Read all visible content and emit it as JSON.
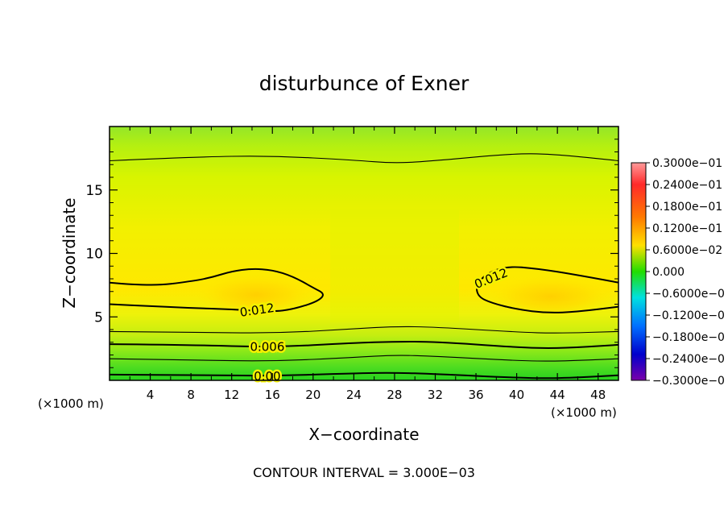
{
  "chart_data": {
    "type": "heatmap",
    "title": "disturbunce of Exner",
    "xlabel": "X−coordinate",
    "ylabel": "Z−coordinate",
    "x_unit_left": "(×1000 m)",
    "x_unit_right": "(×1000 m)",
    "xlim": [
      0,
      50
    ],
    "ylim": [
      0,
      20
    ],
    "x_ticks": [
      4,
      8,
      12,
      16,
      20,
      24,
      28,
      32,
      36,
      40,
      44,
      48
    ],
    "x_tick_labels": [
      "4",
      "8",
      "12",
      "16",
      "20",
      "24",
      "28",
      "32",
      "36",
      "40",
      "44",
      "48"
    ],
    "y_ticks": [
      5,
      10,
      15
    ],
    "y_tick_labels": [
      "5",
      "10",
      "15"
    ],
    "footer": "CONTOUR INTERVAL = 3.000E−03",
    "colorbar": {
      "range": [
        -0.03,
        0.03
      ],
      "labels": [
        "0.3000e−01",
        "0.2400e−01",
        "0.1800e−01",
        "0.1200e−01",
        "0.6000e−02",
        "0.000",
        "−0.6000e−0",
        "−0.1200e−0",
        "−0.1800e−0",
        "−0.2400e−0",
        "−0.3000e−0"
      ]
    },
    "contour_levels": [
      0.0,
      0.003,
      0.006,
      0.009,
      0.012
    ],
    "contour_labels": [
      {
        "text": "0.012",
        "x": 14.5,
        "z": 5.5
      },
      {
        "text": "0.012",
        "x": 37.5,
        "z": 8.0
      },
      {
        "text": "0.006",
        "x": 15.5,
        "z": 2.6
      },
      {
        "text": "0.00",
        "x": 15.5,
        "z": 0.3
      }
    ],
    "contours": [
      {
        "level": 0.0,
        "points": [
          [
            0,
            0.45
          ],
          [
            8,
            0.42
          ],
          [
            16,
            0.35
          ],
          [
            24,
            0.55
          ],
          [
            28,
            0.6
          ],
          [
            32,
            0.5
          ],
          [
            40,
            0.2
          ],
          [
            44,
            0.15
          ],
          [
            50,
            0.4
          ]
        ]
      },
      {
        "level": 0.003,
        "points": [
          [
            0,
            1.7
          ],
          [
            8,
            1.6
          ],
          [
            16,
            1.5
          ],
          [
            24,
            1.8
          ],
          [
            28,
            2.0
          ],
          [
            32,
            1.9
          ],
          [
            40,
            1.55
          ],
          [
            44,
            1.5
          ],
          [
            50,
            1.7
          ]
        ]
      },
      {
        "level": 0.006,
        "points": [
          [
            0,
            2.85
          ],
          [
            8,
            2.8
          ],
          [
            16,
            2.6
          ],
          [
            24,
            2.95
          ],
          [
            28,
            3.05
          ],
          [
            32,
            3.05
          ],
          [
            40,
            2.6
          ],
          [
            44,
            2.5
          ],
          [
            50,
            2.8
          ]
        ]
      },
      {
        "level": 0.009,
        "points": [
          [
            0,
            3.85
          ],
          [
            8,
            3.8
          ],
          [
            16,
            3.7
          ],
          [
            24,
            4.05
          ],
          [
            28,
            4.25
          ],
          [
            32,
            4.2
          ],
          [
            40,
            3.8
          ],
          [
            44,
            3.7
          ],
          [
            50,
            3.85
          ]
        ]
      },
      {
        "level": 0.009,
        "points": [
          [
            0,
            17.3
          ],
          [
            8,
            17.6
          ],
          [
            16,
            17.7
          ],
          [
            24,
            17.35
          ],
          [
            28,
            17.1
          ],
          [
            32,
            17.3
          ],
          [
            40,
            17.9
          ],
          [
            44,
            17.8
          ],
          [
            50,
            17.3
          ]
        ]
      },
      {
        "level": 0.012,
        "points": [
          [
            0,
            7.7
          ],
          [
            4,
            7.4
          ],
          [
            8,
            7.8
          ],
          [
            10,
            8.1
          ],
          [
            12,
            8.6
          ],
          [
            14,
            8.8
          ],
          [
            16,
            8.7
          ],
          [
            18,
            8.2
          ],
          [
            20,
            7.3
          ],
          [
            21.2,
            6.8
          ],
          [
            20.4,
            6.2
          ],
          [
            18,
            5.6
          ],
          [
            16,
            5.4
          ],
          [
            12,
            5.6
          ],
          [
            8,
            5.7
          ],
          [
            4,
            5.85
          ],
          [
            0,
            6.0
          ]
        ]
      },
      {
        "level": 0.012,
        "points": [
          [
            50,
            7.7
          ],
          [
            46,
            8.3
          ],
          [
            42,
            8.8
          ],
          [
            39,
            9.0
          ],
          [
            37,
            8.4
          ],
          [
            36,
            7.5
          ],
          [
            36.2,
            6.6
          ],
          [
            37.5,
            6.1
          ],
          [
            40,
            5.6
          ],
          [
            43,
            5.3
          ],
          [
            46,
            5.4
          ],
          [
            50,
            5.8
          ]
        ]
      }
    ]
  }
}
